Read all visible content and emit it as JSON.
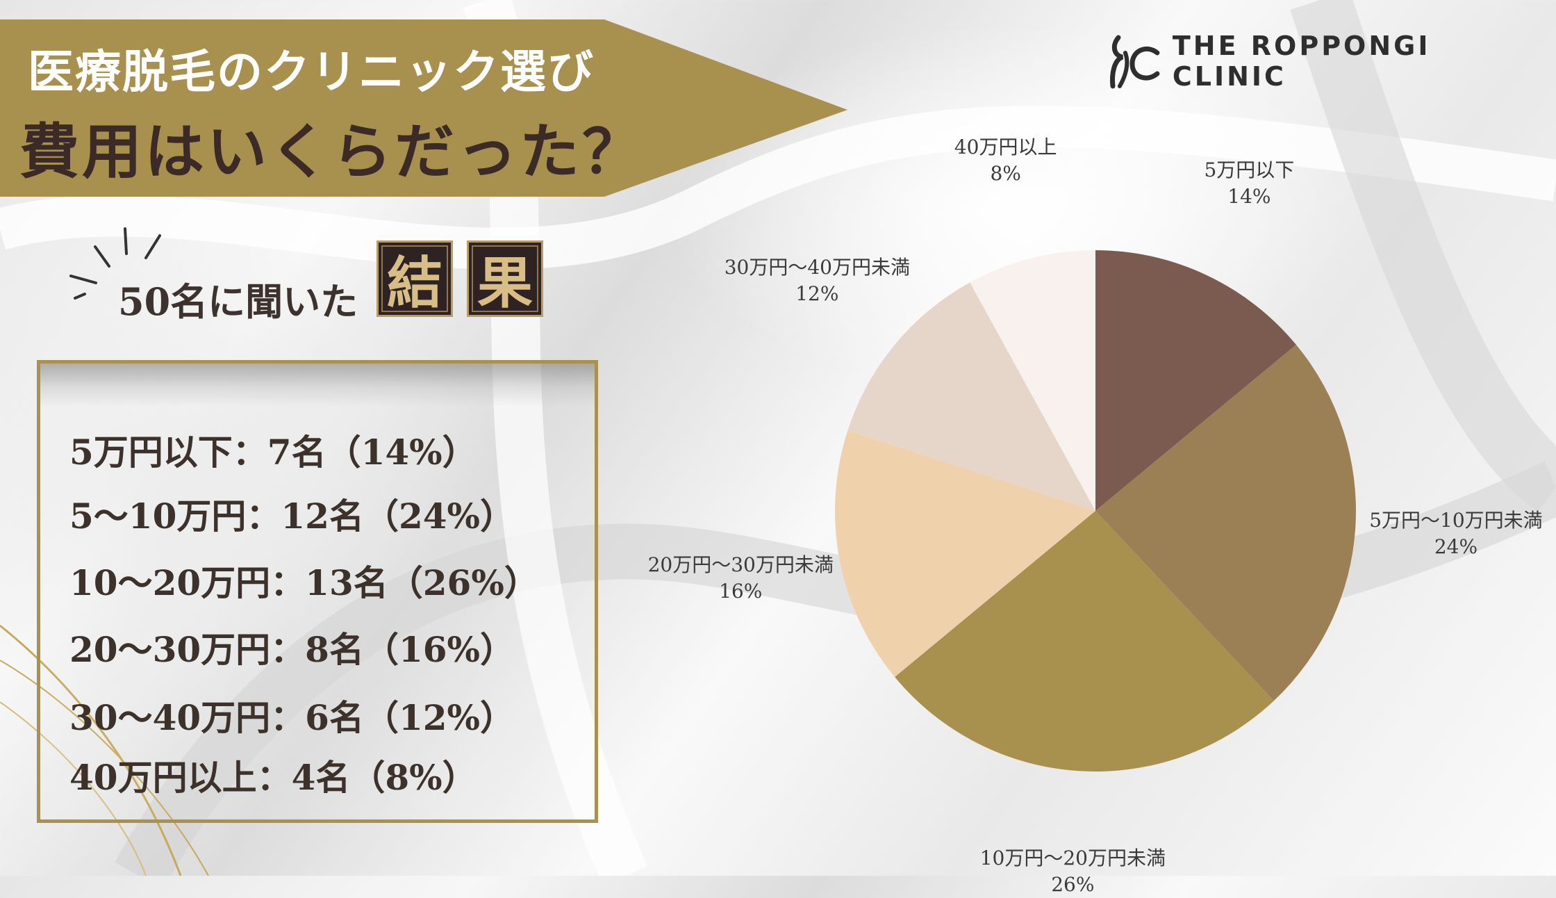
{
  "header": {
    "title_line1": "医療脱毛のクリニック選び",
    "title_line2": "費用はいくらだった？"
  },
  "brand": {
    "name": "THE ROPPONGI CLINIC"
  },
  "survey": {
    "respondents_label": "50名に聞いた",
    "result_kanji_1": "結",
    "result_kanji_2": "果"
  },
  "results_list": [
    "5万円以下：7名（14%）",
    "5〜10万円：12名（24%）",
    "10〜20万円：13名（26%）",
    "20〜30万円：8名（16%）",
    "30〜40万円：6名（12%）",
    "40万円以上：4名（8%）"
  ],
  "colors": {
    "banner_gold": "#a8904f",
    "frame_gold": "#ab9150",
    "text_dark": "#3d312c"
  },
  "chart_data": {
    "type": "pie",
    "start": "12 o'clock, clockwise",
    "slices": [
      {
        "label": "5万円以下",
        "pct_label": "14%",
        "value": 14,
        "color": "#7b5b50"
      },
      {
        "label": "5万円〜10万円未満",
        "pct_label": "24%",
        "value": 24,
        "color": "#9c8055"
      },
      {
        "label": "10万円〜20万円未満",
        "pct_label": "26%",
        "value": 26,
        "color": "#a8904f"
      },
      {
        "label": "20万円〜30万円未満",
        "pct_label": "16%",
        "value": 16,
        "color": "#efd2ab"
      },
      {
        "label": "30万円〜40万円未満",
        "pct_label": "12%",
        "value": 12,
        "color": "#e6d6c9"
      },
      {
        "label": "40万円以上",
        "pct_label": "8%",
        "value": 8,
        "color": "#f8f1ed"
      }
    ]
  }
}
